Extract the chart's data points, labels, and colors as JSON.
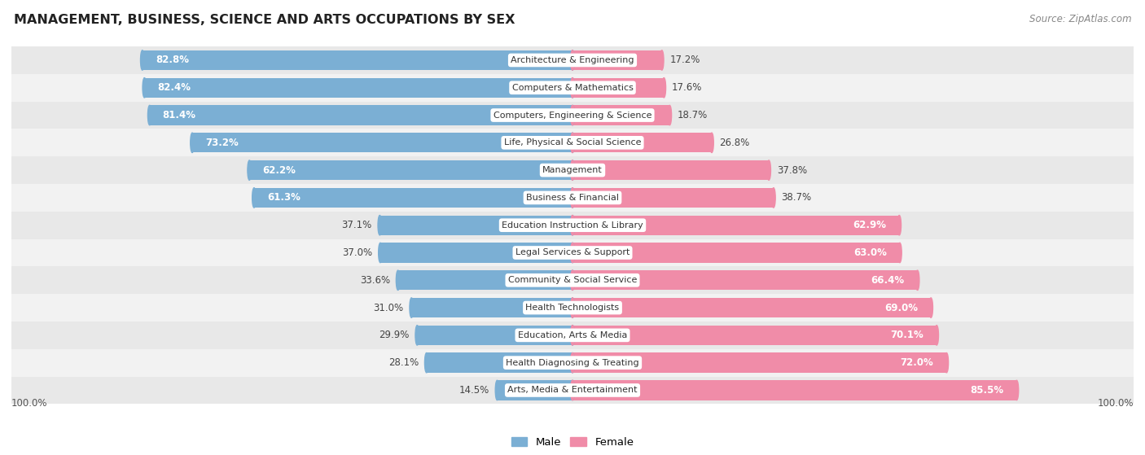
{
  "title": "MANAGEMENT, BUSINESS, SCIENCE AND ARTS OCCUPATIONS BY SEX",
  "source": "Source: ZipAtlas.com",
  "categories": [
    "Architecture & Engineering",
    "Computers & Mathematics",
    "Computers, Engineering & Science",
    "Life, Physical & Social Science",
    "Management",
    "Business & Financial",
    "Education Instruction & Library",
    "Legal Services & Support",
    "Community & Social Service",
    "Health Technologists",
    "Education, Arts & Media",
    "Health Diagnosing & Treating",
    "Arts, Media & Entertainment"
  ],
  "male_pct": [
    82.8,
    82.4,
    81.4,
    73.2,
    62.2,
    61.3,
    37.1,
    37.0,
    33.6,
    31.0,
    29.9,
    28.1,
    14.5
  ],
  "female_pct": [
    17.2,
    17.6,
    18.7,
    26.8,
    37.8,
    38.7,
    62.9,
    63.0,
    66.4,
    69.0,
    70.1,
    72.0,
    85.5
  ],
  "male_color": "#7bafd4",
  "female_color": "#f08ca8",
  "male_color_light": "#aecde8",
  "female_color_light": "#f4b8c8",
  "bar_height": 0.72,
  "row_bg_colors": [
    "#e8e8e8",
    "#f2f2f2"
  ],
  "axis_label": "100.0%",
  "label_fontsize": 8.5,
  "cat_fontsize": 8.0,
  "title_fontsize": 11.5,
  "source_fontsize": 8.5
}
